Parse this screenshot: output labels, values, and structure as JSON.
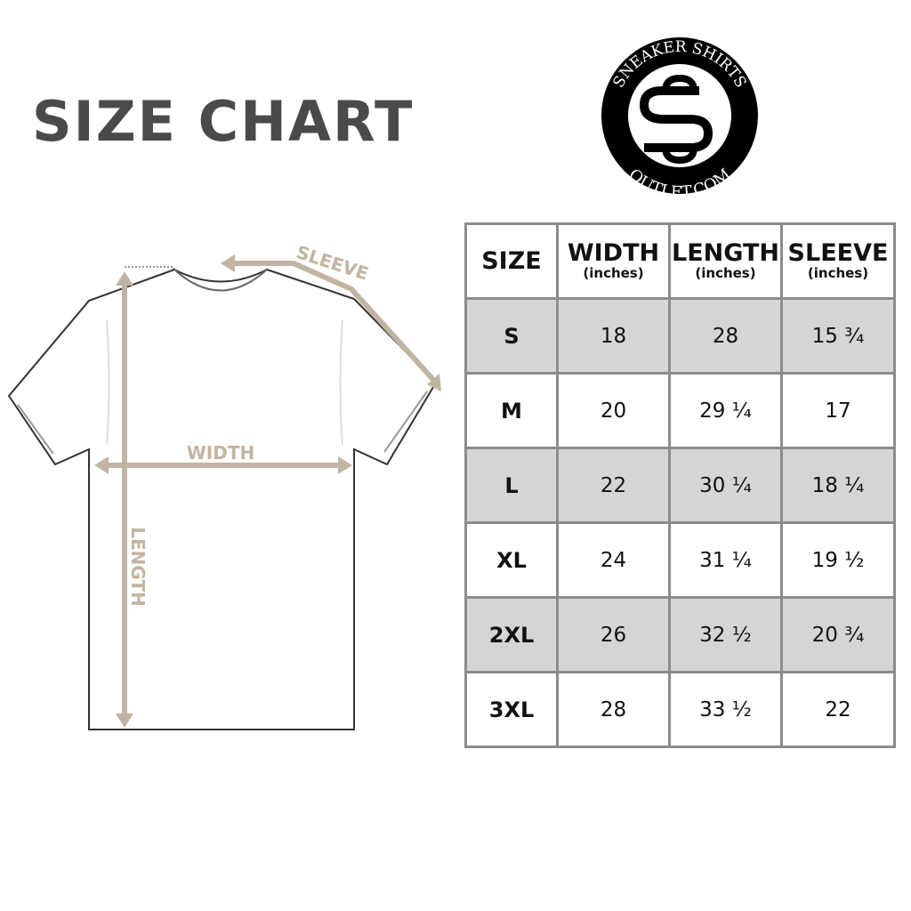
{
  "title": "SIZE CHART",
  "logo": {
    "top_text": "SNEAKER SHIRTS",
    "bottom_text": "OUTLET.COM",
    "monogram": "SS"
  },
  "diagram": {
    "sleeve_label": "SLEEVE",
    "width_label": "WIDTH",
    "length_label": "LENGTH",
    "accent_color": "#c2b4a2"
  },
  "table": {
    "headers": [
      {
        "label": "SIZE",
        "sub": ""
      },
      {
        "label": "WIDTH",
        "sub": "(inches)"
      },
      {
        "label": "LENGTH",
        "sub": "(inches)"
      },
      {
        "label": "SLEEVE",
        "sub": "(inches)"
      }
    ],
    "rows": [
      [
        "S",
        "18",
        "28",
        "15 ¾"
      ],
      [
        "M",
        "20",
        "29 ¼",
        "17"
      ],
      [
        "L",
        "22",
        "30 ¼",
        "18 ¼"
      ],
      [
        "XL",
        "24",
        "31 ¼",
        "19 ½"
      ],
      [
        "2XL",
        "26",
        "32 ½",
        "20 ¾"
      ],
      [
        "3XL",
        "28",
        "33 ½",
        "22"
      ]
    ]
  }
}
